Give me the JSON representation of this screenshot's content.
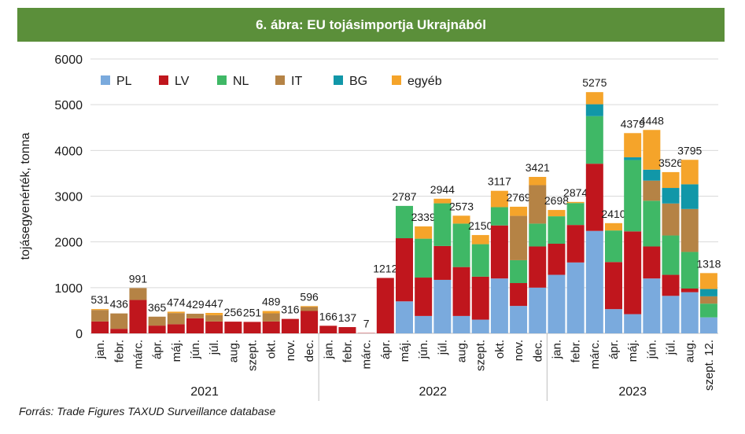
{
  "header": {
    "title": "6. ábra: EU tojásimportja Ukrajnából"
  },
  "source": "Forrás: Trade Figures TAXUD Surveillance database",
  "chart_data": {
    "type": "bar",
    "stacked": true,
    "title": "6. ábra: EU tojásimportja Ukrajnából",
    "ylabel": "tojásegyenérték, tonna",
    "xlabel": "",
    "ylim": [
      0,
      6000
    ],
    "yticks": [
      0,
      1000,
      2000,
      3000,
      4000,
      5000,
      6000
    ],
    "grid": "horizontal",
    "legend_position": "top-left",
    "categories": [
      "jan.",
      "febr.",
      "márc.",
      "ápr.",
      "máj.",
      "jún.",
      "júl.",
      "aug.",
      "szept.",
      "okt.",
      "nov.",
      "dec.",
      "jan.",
      "febr.",
      "márc.",
      "ápr.",
      "máj.",
      "jún.",
      "júl.",
      "aug.",
      "szept.",
      "okt.",
      "nov.",
      "dec.",
      "jan.",
      "febr.",
      "márc.",
      "ápr.",
      "máj.",
      "jún.",
      "júl.",
      "aug.",
      "szept. 12."
    ],
    "years": [
      {
        "label": "2021",
        "start": 0,
        "end": 11
      },
      {
        "label": "2022",
        "start": 12,
        "end": 23
      },
      {
        "label": "2023",
        "start": 24,
        "end": 32
      }
    ],
    "totals": [
      531,
      436,
      991,
      365,
      474,
      429,
      447,
      256,
      251,
      489,
      316,
      596,
      166,
      137,
      7,
      1212,
      2787,
      2339,
      2944,
      2573,
      2150,
      3117,
      2769,
      3421,
      2698,
      2874,
      5275,
      2410,
      4379,
      4448,
      3526,
      3795,
      1318
    ],
    "series": [
      {
        "name": "PL",
        "color": "#7aaadd",
        "values": [
          0,
          0,
          0,
          0,
          0,
          0,
          0,
          0,
          0,
          0,
          0,
          0,
          0,
          0,
          0,
          0,
          700,
          380,
          1170,
          380,
          300,
          1200,
          600,
          1000,
          1280,
          1550,
          2240,
          530,
          420,
          1200,
          820,
          900,
          350
        ]
      },
      {
        "name": "LV",
        "color": "#c0161d",
        "values": [
          260,
          100,
          730,
          170,
          200,
          330,
          260,
          256,
          251,
          260,
          316,
          490,
          166,
          137,
          7,
          1212,
          1380,
          840,
          740,
          1070,
          940,
          1160,
          500,
          900,
          680,
          820,
          1470,
          1030,
          1810,
          700,
          460,
          80,
          0
        ]
      },
      {
        "name": "NL",
        "color": "#3fb866",
        "values": [
          0,
          0,
          0,
          0,
          0,
          0,
          0,
          0,
          0,
          0,
          0,
          0,
          0,
          0,
          0,
          0,
          707,
          850,
          934,
          950,
          710,
          400,
          500,
          500,
          600,
          480,
          1040,
          690,
          1560,
          1000,
          860,
          800,
          300
        ]
      },
      {
        "name": "IT",
        "color": "#b58345",
        "values": [
          251,
          336,
          261,
          195,
          244,
          99,
          137,
          0,
          0,
          179,
          0,
          86,
          0,
          0,
          0,
          0,
          0,
          0,
          0,
          0,
          0,
          0,
          969,
          841,
          0,
          0,
          0,
          0,
          0,
          440,
          700,
          940,
          160
        ]
      },
      {
        "name": "BG",
        "color": "#1197a8",
        "values": [
          0,
          0,
          0,
          0,
          0,
          0,
          0,
          0,
          0,
          0,
          0,
          0,
          0,
          0,
          0,
          0,
          0,
          0,
          0,
          0,
          0,
          0,
          0,
          0,
          0,
          0,
          260,
          0,
          60,
          240,
          340,
          540,
          160
        ]
      },
      {
        "name": "egyéb",
        "color": "#f5a42a",
        "values": [
          20,
          0,
          0,
          0,
          30,
          0,
          50,
          0,
          0,
          50,
          0,
          20,
          0,
          0,
          0,
          0,
          0,
          269,
          100,
          173,
          200,
          357,
          200,
          180,
          138,
          24,
          265,
          160,
          529,
          868,
          346,
          535,
          348
        ]
      }
    ]
  }
}
